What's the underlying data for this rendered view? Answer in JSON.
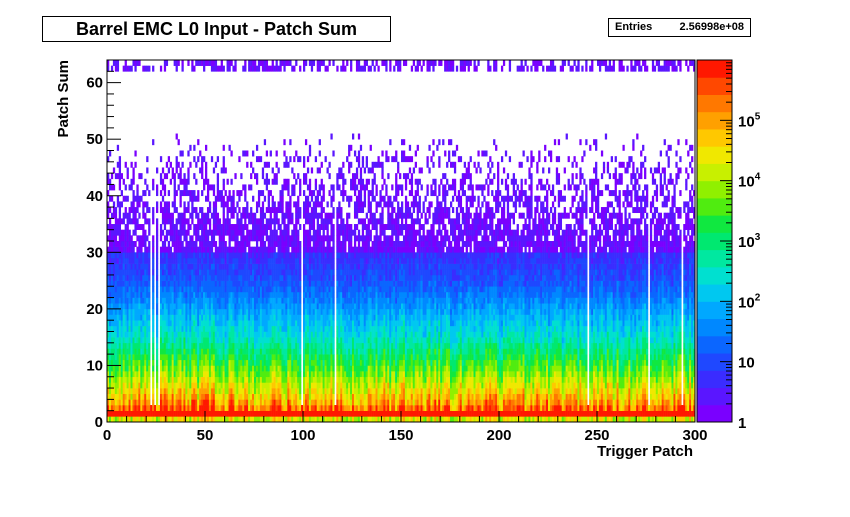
{
  "chart_data": {
    "type": "heatmap",
    "title": "Barrel EMC L0 Input - Patch Sum",
    "xlabel": "Trigger Patch",
    "ylabel": "Patch Sum",
    "xlim": [
      0,
      300
    ],
    "ylim": [
      0,
      64
    ],
    "x_ticks": [
      0,
      50,
      100,
      150,
      200,
      250,
      300
    ],
    "y_ticks": [
      0,
      10,
      20,
      30,
      40,
      50,
      60
    ],
    "colorbar": {
      "scale": "log",
      "range": [
        1,
        1000000
      ],
      "ticks": [
        {
          "value": 1,
          "label": "1",
          "sup": ""
        },
        {
          "value": 10,
          "label": "10",
          "sup": ""
        },
        {
          "value": 100,
          "label": "10",
          "sup": "2"
        },
        {
          "value": 1000,
          "label": "10",
          "sup": "3"
        },
        {
          "value": 10000,
          "label": "10",
          "sup": "4"
        },
        {
          "value": 100000,
          "label": "10",
          "sup": "5"
        }
      ]
    },
    "stats": {
      "entries_label": "Entries",
      "entries_value": "2.56998e+08"
    },
    "profile": {
      "note_rows": [
        {
          "y": 0.5,
          "count": 20000
        },
        {
          "y": 1.5,
          "count": 900000
        },
        {
          "y": 3,
          "count": 150000
        },
        {
          "y": 5,
          "count": 40000
        },
        {
          "y": 10,
          "count": 3000
        },
        {
          "y": 15,
          "count": 300
        },
        {
          "y": 20,
          "count": 60
        },
        {
          "y": 25,
          "count": 12
        },
        {
          "y": 30,
          "count": 5
        },
        {
          "y": 35,
          "count": 2
        },
        {
          "y": 45,
          "count": 1
        },
        {
          "y": 62.5,
          "count": 1
        }
      ],
      "dead_patches": [
        22,
        24,
        26,
        99,
        116,
        245,
        276,
        293
      ]
    }
  }
}
